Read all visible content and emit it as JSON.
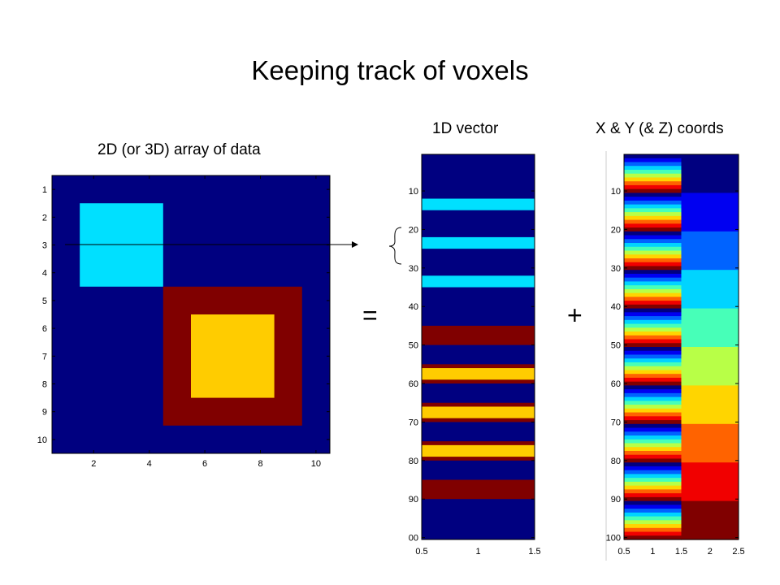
{
  "slide": {
    "title": "Keeping track of voxels",
    "equals": "=",
    "plus": "+"
  },
  "colors": {
    "background": "#000080",
    "light_blue": "#00e0ff",
    "dark_red": "#800000",
    "yellow": "#ffcc00",
    "axis": "#000000"
  },
  "chart_data": [
    {
      "type": "heatmap",
      "title": "2D (or 3D) array of data",
      "rows": 10,
      "cols": 10,
      "xticks": [
        2,
        4,
        6,
        8,
        10
      ],
      "yticks": [
        1,
        2,
        3,
        4,
        5,
        6,
        7,
        8,
        9,
        10
      ],
      "xlim": [
        0.5,
        10.5
      ],
      "ylim": [
        0.5,
        10.5
      ],
      "background_color": "#000080",
      "regions": [
        {
          "rows": [
            2,
            4
          ],
          "cols": [
            2,
            4
          ],
          "color": "#00e0ff"
        },
        {
          "rows": [
            5,
            9
          ],
          "cols": [
            5,
            9
          ],
          "color": "#800000"
        },
        {
          "rows": [
            6,
            8
          ],
          "cols": [
            6,
            8
          ],
          "color": "#ffcc00"
        }
      ]
    },
    {
      "type": "heatmap",
      "title": "1D vector",
      "xticks": [
        "0.5",
        "1",
        "1.5"
      ],
      "yticks": [
        "10",
        "20",
        "30",
        "40",
        "50",
        "60",
        "70",
        "80",
        "90",
        "00"
      ],
      "ylim": [
        0.5,
        100.5
      ],
      "background_color": "#000080",
      "bands": [
        {
          "from": 12,
          "to": 14,
          "color": "#00e0ff"
        },
        {
          "from": 22,
          "to": 24,
          "color": "#00e0ff"
        },
        {
          "from": 32,
          "to": 34,
          "color": "#00e0ff"
        },
        {
          "from": 45,
          "to": 49,
          "color": "#800000"
        },
        {
          "from": 55,
          "to": 59,
          "color": "#800000"
        },
        {
          "from": 56,
          "to": 58,
          "color": "#ffcc00"
        },
        {
          "from": 65,
          "to": 69,
          "color": "#800000"
        },
        {
          "from": 66,
          "to": 68,
          "color": "#ffcc00"
        },
        {
          "from": 75,
          "to": 79,
          "color": "#800000"
        },
        {
          "from": 76,
          "to": 78,
          "color": "#ffcc00"
        },
        {
          "from": 85,
          "to": 89,
          "color": "#800000"
        }
      ]
    },
    {
      "type": "heatmap",
      "title": "X & Y (& Z) coords",
      "xticks": [
        "0.5",
        "1",
        "1.5",
        "2",
        "2.5"
      ],
      "yticks": [
        "10",
        "20",
        "30",
        "40",
        "50",
        "60",
        "70",
        "80",
        "90",
        "100"
      ],
      "ylim": [
        0.5,
        100.5
      ],
      "column1": "x coordinate, cycles 1..10 every 10 rows",
      "column2": "y coordinate, constant 1..10 per block of 10 rows"
    }
  ]
}
